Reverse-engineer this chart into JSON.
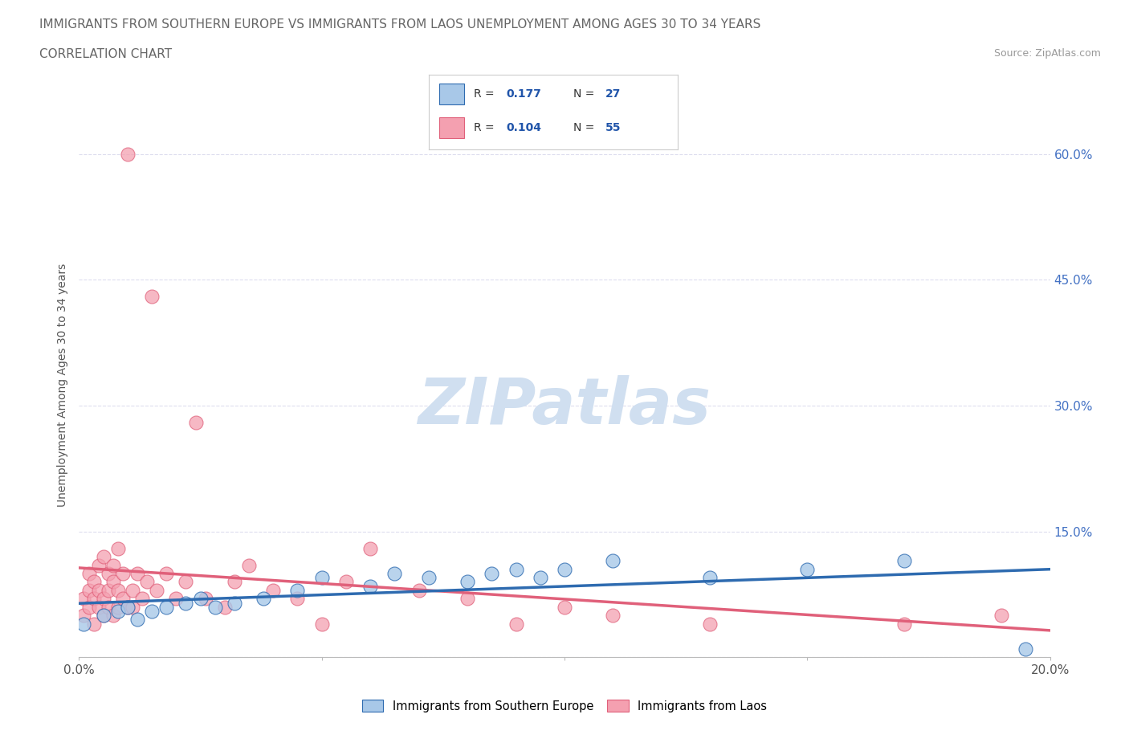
{
  "title_line1": "IMMIGRANTS FROM SOUTHERN EUROPE VS IMMIGRANTS FROM LAOS UNEMPLOYMENT AMONG AGES 30 TO 34 YEARS",
  "title_line2": "CORRELATION CHART",
  "source": "Source: ZipAtlas.com",
  "ylabel": "Unemployment Among Ages 30 to 34 years",
  "xlim": [
    0.0,
    0.2
  ],
  "ylim": [
    0.0,
    0.65
  ],
  "right_ytick_labels": [
    "",
    "15.0%",
    "30.0%",
    "45.0%",
    "60.0%"
  ],
  "color_blue": "#A8C8E8",
  "color_pink": "#F4A0B0",
  "color_blue_line": "#2E6BB0",
  "color_pink_line": "#E0607A",
  "R_blue": 0.177,
  "N_blue": 27,
  "R_pink": 0.104,
  "N_pink": 55,
  "blue_x": [
    0.001,
    0.005,
    0.008,
    0.01,
    0.012,
    0.015,
    0.018,
    0.022,
    0.025,
    0.028,
    0.032,
    0.038,
    0.045,
    0.05,
    0.06,
    0.065,
    0.072,
    0.08,
    0.085,
    0.09,
    0.095,
    0.1,
    0.11,
    0.13,
    0.15,
    0.17,
    0.195
  ],
  "blue_y": [
    0.04,
    0.05,
    0.055,
    0.06,
    0.045,
    0.055,
    0.06,
    0.065,
    0.07,
    0.06,
    0.065,
    0.07,
    0.08,
    0.095,
    0.085,
    0.1,
    0.095,
    0.09,
    0.1,
    0.105,
    0.095,
    0.105,
    0.115,
    0.095,
    0.105,
    0.115,
    0.01
  ],
  "pink_x": [
    0.001,
    0.001,
    0.002,
    0.002,
    0.002,
    0.003,
    0.003,
    0.003,
    0.004,
    0.004,
    0.004,
    0.005,
    0.005,
    0.005,
    0.006,
    0.006,
    0.006,
    0.007,
    0.007,
    0.007,
    0.008,
    0.008,
    0.008,
    0.009,
    0.009,
    0.01,
    0.01,
    0.011,
    0.011,
    0.012,
    0.013,
    0.014,
    0.015,
    0.016,
    0.018,
    0.02,
    0.022,
    0.024,
    0.026,
    0.03,
    0.032,
    0.035,
    0.04,
    0.045,
    0.05,
    0.055,
    0.06,
    0.07,
    0.08,
    0.09,
    0.1,
    0.11,
    0.13,
    0.17,
    0.19
  ],
  "pink_y": [
    0.05,
    0.07,
    0.06,
    0.08,
    0.1,
    0.04,
    0.07,
    0.09,
    0.06,
    0.08,
    0.11,
    0.05,
    0.07,
    0.12,
    0.06,
    0.08,
    0.1,
    0.05,
    0.09,
    0.11,
    0.06,
    0.08,
    0.13,
    0.07,
    0.1,
    0.06,
    0.6,
    0.06,
    0.08,
    0.1,
    0.07,
    0.09,
    0.43,
    0.08,
    0.1,
    0.07,
    0.09,
    0.28,
    0.07,
    0.06,
    0.09,
    0.11,
    0.08,
    0.07,
    0.04,
    0.09,
    0.13,
    0.08,
    0.07,
    0.04,
    0.06,
    0.05,
    0.04,
    0.04,
    0.05
  ],
  "watermark": "ZIPatlas",
  "watermark_color": "#D0DFF0",
  "background_color": "#FFFFFF",
  "grid_color": "#DDDDEE",
  "title_fontsize": 11,
  "label_fontsize": 10
}
